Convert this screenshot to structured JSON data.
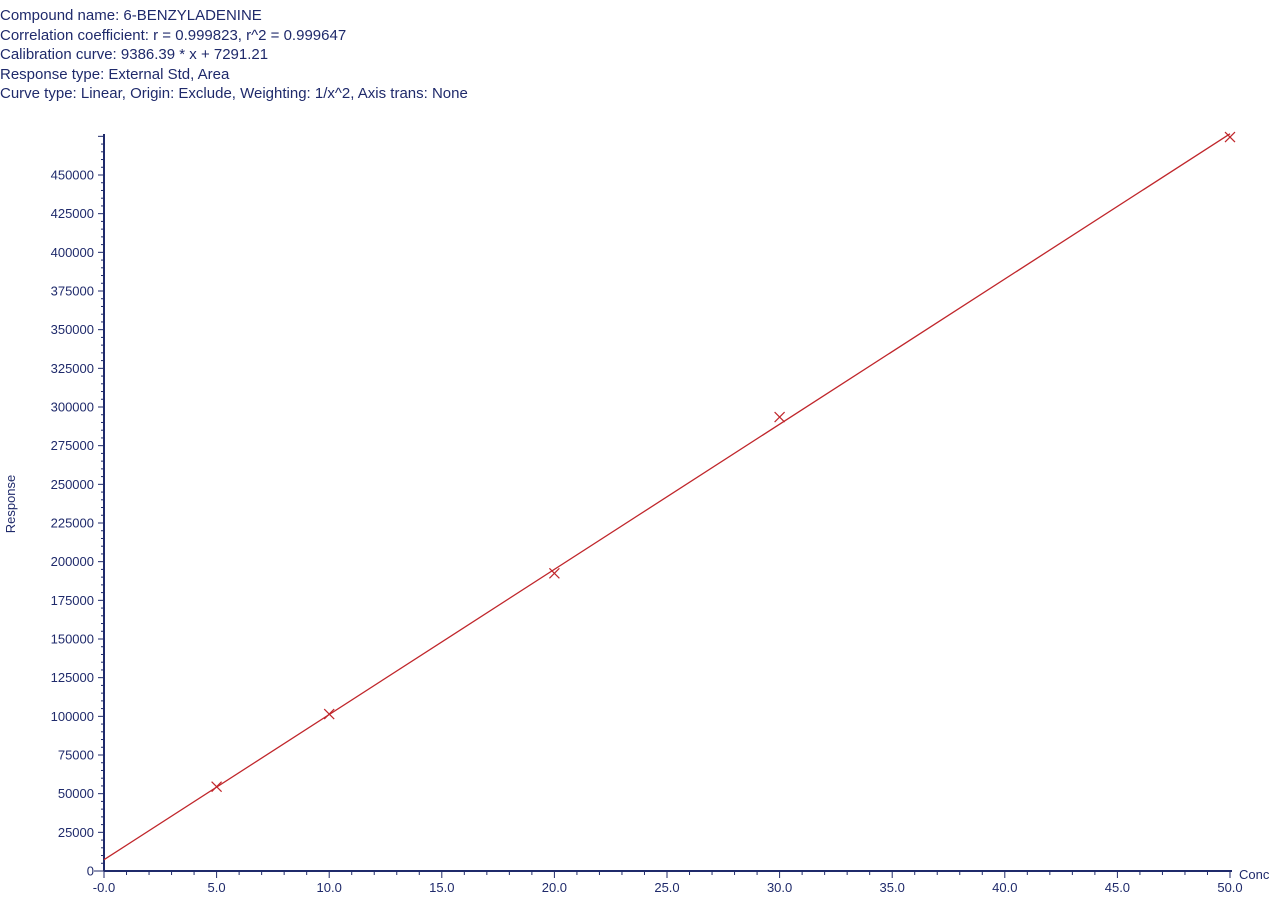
{
  "header": {
    "compound": "Compound name: 6-BENZYLADENINE",
    "correlation": "Correlation coefficient: r = 0.999823, r^2 = 0.999647",
    "calibration": "Calibration curve: 9386.39 * x + 7291.21",
    "response_type": "Response type: External Std, Area",
    "curve_type": "Curve type: Linear, Origin: Exclude, Weighting: 1/x^2, Axis trans: None"
  },
  "colors": {
    "axis": "#1f2a6b",
    "series": "#c0262b"
  },
  "chart_data": {
    "type": "scatter",
    "xlabel": "Conc",
    "ylabel": "Response",
    "xlim": [
      0,
      50
    ],
    "ylim": [
      0,
      475000
    ],
    "x_ticks": [
      "-0.0",
      "5.0",
      "10.0",
      "15.0",
      "20.0",
      "25.0",
      "30.0",
      "35.0",
      "40.0",
      "45.0",
      "50.0"
    ],
    "y_ticks": [
      "0",
      "25000",
      "50000",
      "75000",
      "100000",
      "125000",
      "150000",
      "175000",
      "200000",
      "225000",
      "250000",
      "275000",
      "300000",
      "325000",
      "350000",
      "375000",
      "400000",
      "425000",
      "450000"
    ],
    "points": [
      {
        "x": 5,
        "y": 54500
      },
      {
        "x": 10,
        "y": 101500
      },
      {
        "x": 20,
        "y": 192500
      },
      {
        "x": 30,
        "y": 293500
      },
      {
        "x": 50,
        "y": 474500
      }
    ],
    "fit": {
      "slope": 9386.39,
      "intercept": 7291.21,
      "x_range": [
        0,
        50
      ]
    }
  }
}
